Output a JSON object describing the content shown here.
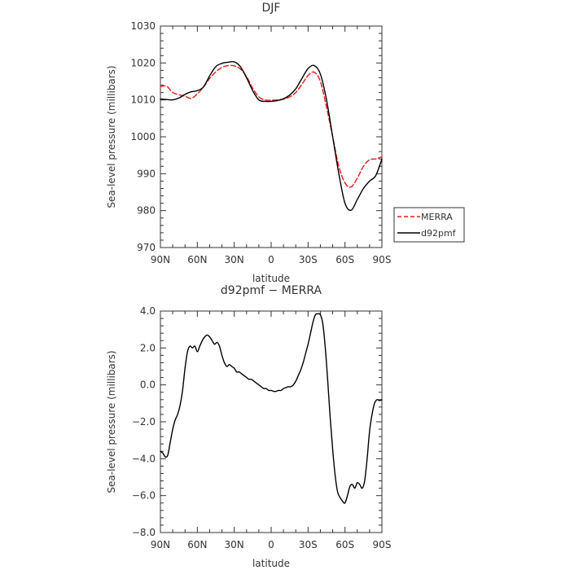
{
  "chart_data": [
    {
      "type": "line",
      "title": "DJF",
      "xlabel": "latitude",
      "ylabel": "Sea-level pressure (millibars)",
      "xlim": [
        90,
        -90
      ],
      "ylim": [
        970,
        1030
      ],
      "x_ticks": [
        {
          "value": 90,
          "label": "90N"
        },
        {
          "value": 60,
          "label": "60N"
        },
        {
          "value": 30,
          "label": "30N"
        },
        {
          "value": 0,
          "label": "0"
        },
        {
          "value": -30,
          "label": "30S"
        },
        {
          "value": -60,
          "label": "60S"
        },
        {
          "value": -90,
          "label": "90S"
        }
      ],
      "y_ticks": [
        {
          "value": 1030,
          "label": "1030"
        },
        {
          "value": 1020,
          "label": "1020"
        },
        {
          "value": 1010,
          "label": "1010"
        },
        {
          "value": 1000,
          "label": "1000"
        },
        {
          "value": 990,
          "label": "990"
        },
        {
          "value": 980,
          "label": "980"
        },
        {
          "value": 970,
          "label": "970"
        }
      ],
      "legend": {
        "placement": "right"
      },
      "series": [
        {
          "name": "MERRA",
          "color": "#e41a1c",
          "dash": true,
          "x": [
            90,
            85,
            80,
            75,
            70,
            65,
            60,
            55,
            50,
            45,
            40,
            35,
            30,
            25,
            20,
            15,
            10,
            5,
            0,
            -5,
            -10,
            -15,
            -20,
            -25,
            -30,
            -35,
            -40,
            -45,
            -50,
            -55,
            -60,
            -65,
            -70,
            -75,
            -80,
            -85,
            -90
          ],
          "values": [
            1013.6,
            1013.7,
            1012.0,
            1011.4,
            1011.0,
            1010.4,
            1011.6,
            1013.5,
            1015.8,
            1017.6,
            1018.8,
            1019.3,
            1019.2,
            1018.4,
            1016.3,
            1013.2,
            1010.8,
            1010.0,
            1009.9,
            1010.0,
            1010.2,
            1010.8,
            1012.0,
            1014.2,
            1016.6,
            1017.5,
            1015.0,
            1008.0,
            1000.0,
            992.0,
            987.5,
            986.4,
            988.8,
            992.0,
            993.8,
            994.0,
            994.6
          ]
        },
        {
          "name": "d92pmf",
          "color": "#000000",
          "dash": false,
          "x": [
            90,
            85,
            80,
            75,
            70,
            65,
            60,
            55,
            50,
            45,
            40,
            35,
            30,
            25,
            20,
            15,
            10,
            5,
            0,
            -5,
            -10,
            -15,
            -20,
            -25,
            -30,
            -35,
            -40,
            -45,
            -50,
            -55,
            -60,
            -65,
            -70,
            -75,
            -80,
            -85,
            -90
          ],
          "values": [
            1010.2,
            1010.1,
            1010.0,
            1010.5,
            1011.5,
            1012.2,
            1012.5,
            1013.5,
            1016.5,
            1019.0,
            1019.9,
            1020.2,
            1020.3,
            1019.0,
            1016.0,
            1012.5,
            1010.0,
            1009.6,
            1009.6,
            1009.8,
            1010.3,
            1011.3,
            1013.0,
            1015.8,
            1018.5,
            1019.3,
            1017.0,
            1010.0,
            1000.0,
            990.0,
            982.0,
            980.1,
            983.0,
            986.0,
            988.0,
            989.5,
            994.0
          ]
        }
      ]
    },
    {
      "type": "line",
      "title": "d92pmf  −  MERRA",
      "xlabel": "latitude",
      "ylabel": "Sea-level pressure (millibars)",
      "xlim": [
        90,
        -90
      ],
      "ylim": [
        -8,
        4
      ],
      "x_ticks": [
        {
          "value": 90,
          "label": "90N"
        },
        {
          "value": 60,
          "label": "60N"
        },
        {
          "value": 30,
          "label": "30N"
        },
        {
          "value": 0,
          "label": "0"
        },
        {
          "value": -30,
          "label": "30S"
        },
        {
          "value": -60,
          "label": "60S"
        },
        {
          "value": -90,
          "label": "90S"
        }
      ],
      "y_ticks": [
        {
          "value": 4,
          "label": "4.0"
        },
        {
          "value": 2,
          "label": "2.0"
        },
        {
          "value": 0,
          "label": "0.0"
        },
        {
          "value": -2,
          "label": "−2.0"
        },
        {
          "value": -4,
          "label": "−4.0"
        },
        {
          "value": -6,
          "label": "−6.0"
        },
        {
          "value": -8,
          "label": "−8.0"
        }
      ],
      "series": [
        {
          "color": "#000000",
          "dash": false,
          "x": [
            90,
            88,
            86,
            84,
            82,
            80,
            78,
            76,
            74,
            72,
            70,
            68,
            66,
            64,
            62,
            60,
            58,
            56,
            54,
            52,
            50,
            48,
            46,
            44,
            42,
            40,
            38,
            36,
            34,
            32,
            30,
            28,
            26,
            24,
            22,
            20,
            18,
            16,
            14,
            12,
            10,
            8,
            6,
            4,
            2,
            0,
            -2,
            -4,
            -6,
            -8,
            -10,
            -12,
            -14,
            -16,
            -18,
            -20,
            -22,
            -24,
            -26,
            -28,
            -30,
            -32,
            -34,
            -36,
            -38,
            -40,
            -42,
            -44,
            -46,
            -48,
            -50,
            -52,
            -54,
            -56,
            -58,
            -60,
            -62,
            -64,
            -66,
            -68,
            -70,
            -72,
            -74,
            -76,
            -78,
            -80,
            -82,
            -84,
            -86,
            -88,
            -90
          ],
          "values": [
            -3.6,
            -3.7,
            -3.9,
            -3.8,
            -3.1,
            -2.4,
            -1.9,
            -1.6,
            -1.1,
            -0.3,
            0.9,
            1.8,
            2.1,
            2.0,
            2.1,
            1.8,
            2.1,
            2.4,
            2.6,
            2.7,
            2.6,
            2.4,
            2.2,
            2.3,
            2.1,
            1.6,
            1.2,
            1.0,
            1.1,
            1.0,
            0.9,
            0.7,
            0.7,
            0.6,
            0.5,
            0.4,
            0.3,
            0.3,
            0.2,
            0.1,
            0.0,
            -0.1,
            -0.2,
            -0.2,
            -0.3,
            -0.3,
            -0.35,
            -0.35,
            -0.3,
            -0.3,
            -0.2,
            -0.15,
            -0.1,
            -0.1,
            0.0,
            0.2,
            0.5,
            0.8,
            1.2,
            1.7,
            2.2,
            2.8,
            3.4,
            3.8,
            3.85,
            3.8,
            3.3,
            2.0,
            0.2,
            -1.8,
            -3.5,
            -4.9,
            -5.8,
            -6.1,
            -6.3,
            -6.4,
            -6.0,
            -5.5,
            -5.4,
            -5.6,
            -5.3,
            -5.4,
            -5.6,
            -5.2,
            -4.0,
            -2.5,
            -1.6,
            -1.0,
            -0.8,
            -0.85,
            -0.8
          ]
        }
      ]
    }
  ]
}
